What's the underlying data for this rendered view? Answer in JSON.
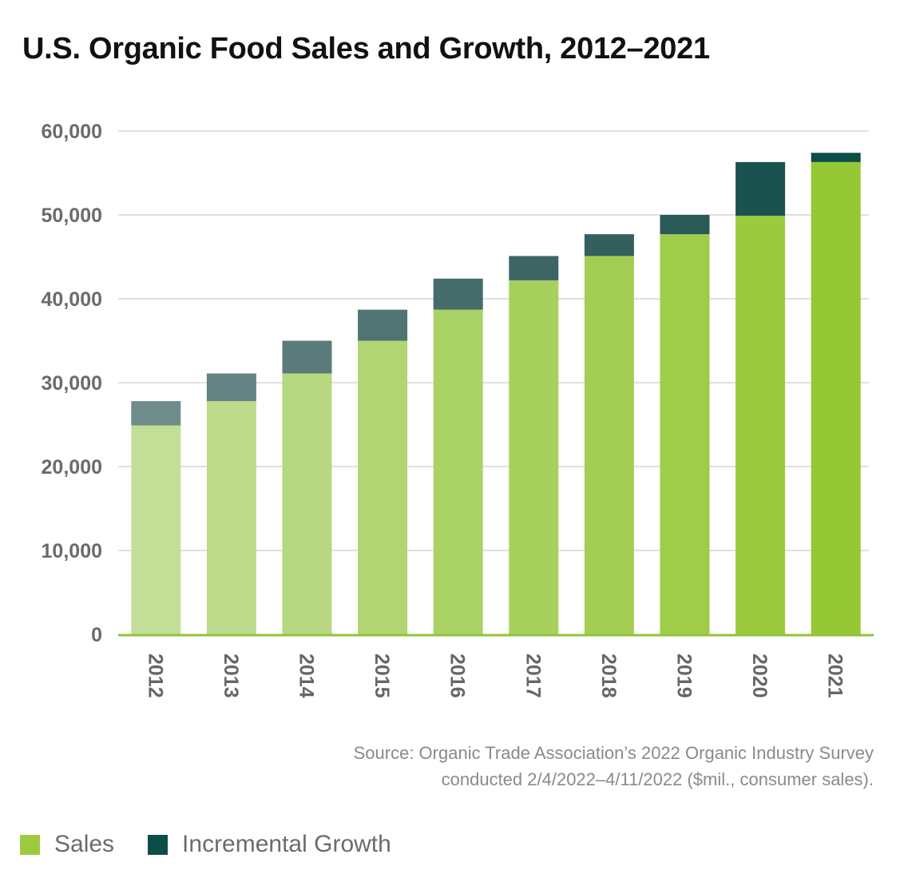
{
  "title": "U.S. Organic Food Sales and Growth, 2012–2021",
  "source": {
    "line1": "Source: Organic Trade Association’s 2022 Organic Industry Survey",
    "line2": "conducted 2/4/2022–4/11/2022 ($mil., consumer sales)."
  },
  "legend": [
    {
      "label": "Sales",
      "color": "#9ccb40"
    },
    {
      "label": "Incremental Growth",
      "color": "#0b4d47"
    }
  ],
  "chart_data": {
    "type": "bar",
    "stacked": true,
    "categories": [
      "2012",
      "2013",
      "2014",
      "2015",
      "2016",
      "2017",
      "2018",
      "2019",
      "2020",
      "2021"
    ],
    "series": [
      {
        "name": "Sales",
        "values": [
          24900,
          27800,
          31100,
          35000,
          38700,
          42200,
          45100,
          47700,
          49900,
          56300
        ]
      },
      {
        "name": "Incremental Growth",
        "values": [
          2900,
          3300,
          3900,
          3700,
          3700,
          2900,
          2600,
          2300,
          6400,
          1100
        ]
      }
    ],
    "yticks": [
      0,
      10000,
      20000,
      30000,
      40000,
      50000,
      60000
    ],
    "ytick_labels": [
      "0",
      "10,000",
      "20,000",
      "30,000",
      "40,000",
      "50,000",
      "60,000"
    ],
    "ylim": [
      0,
      60000
    ],
    "xlabel": "",
    "ylabel": "",
    "grid": true,
    "legend_position": "bottom-left",
    "sales_colors": [
      "#c3df97",
      "#bddb8b",
      "#b7d880",
      "#b1d573",
      "#abd267",
      "#a7d05d",
      "#a3ce53",
      "#9fcc49",
      "#9bca3f",
      "#95c834"
    ],
    "growth_colors": [
      "#6f8c8b",
      "#648383",
      "#5b7b7b",
      "#507373",
      "#466c6b",
      "#3d6565",
      "#345f5e",
      "#2a5957",
      "#1b524f",
      "#0b4d47"
    ]
  }
}
